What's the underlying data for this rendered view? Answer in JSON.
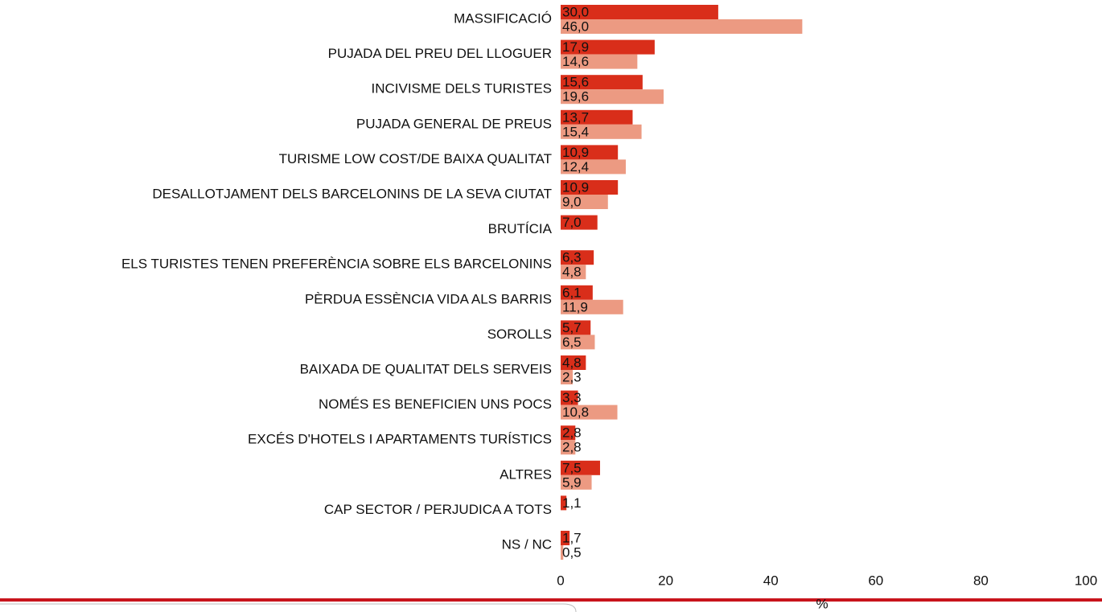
{
  "chart_data": {
    "type": "bar",
    "orientation": "horizontal",
    "categories": [
      "MASSIFICACIÓ",
      "PUJADA DEL PREU DEL LLOGUER",
      "INCIVISME DELS TURISTES",
      "PUJADA GENERAL DE PREUS",
      "TURISME LOW COST/DE BAIXA QUALITAT",
      "DESALLOTJAMENT DELS BARCELONINS DE LA SEVA CIUTAT",
      "BRUTÍCIA",
      "ELS TURISTES TENEN PREFERÈNCIA SOBRE ELS BARCELONINS",
      "PÈRDUA ESSÈNCIA VIDA ALS BARRIS",
      "SOROLLS",
      "BAIXADA DE QUALITAT DELS SERVEIS",
      "NOMÉS ES BENEFICIEN UNS POCS",
      "EXCÉS D'HOTELS I APARTAMENTS TURÍSTICS",
      "ALTRES",
      "CAP SECTOR / PERJUDICA A TOTS",
      "NS / NC"
    ],
    "series": [
      {
        "color": "#d92e1a",
        "values": [
          30.0,
          17.9,
          15.6,
          13.7,
          10.9,
          10.9,
          7.0,
          6.3,
          6.1,
          5.7,
          4.8,
          3.3,
          2.8,
          7.5,
          1.1,
          1.7
        ],
        "value_labels": [
          "30,0",
          "17,9",
          "15,6",
          "13,7",
          "10,9",
          "10,9",
          "7,0",
          "6,3",
          "6,1",
          "5,7",
          "4,8",
          "3,3",
          "2,8",
          "7,5",
          "1,1",
          "1,7"
        ]
      },
      {
        "color": "#ec9a82",
        "values": [
          46.0,
          14.6,
          19.6,
          15.4,
          12.4,
          9.0,
          null,
          4.8,
          11.9,
          6.5,
          2.3,
          10.8,
          2.8,
          5.9,
          null,
          0.5
        ],
        "value_labels": [
          "46,0",
          "14,6",
          "19,6",
          "15,4",
          "12,4",
          "9,0",
          null,
          "4,8",
          "11,9",
          "6,5",
          "2,3",
          "10,8",
          "2,8",
          "5,9",
          null,
          "0,5"
        ]
      }
    ],
    "xlim": [
      0,
      100
    ],
    "xticks": [
      0,
      20,
      40,
      60,
      80,
      100
    ],
    "xlabel": "%"
  }
}
